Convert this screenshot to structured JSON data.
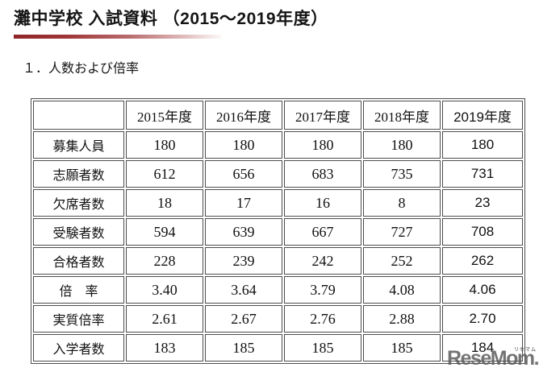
{
  "page": {
    "title": "灘中学校 入試資料 （2015～2019年度）",
    "section_heading": "１．人数および倍率"
  },
  "table": {
    "headers": [
      "",
      "2015年度",
      "2016年度",
      "2017年度",
      "2018年度",
      "2019年度"
    ],
    "rows": [
      {
        "label": "募集人員",
        "values": [
          "180",
          "180",
          "180",
          "180",
          "180"
        ]
      },
      {
        "label": "志願者数",
        "values": [
          "612",
          "656",
          "683",
          "735",
          "731"
        ]
      },
      {
        "label": "欠席者数",
        "values": [
          "18",
          "17",
          "16",
          "8",
          "23"
        ]
      },
      {
        "label": "受験者数",
        "values": [
          "594",
          "639",
          "667",
          "727",
          "708"
        ]
      },
      {
        "label": "合格者数",
        "values": [
          "228",
          "239",
          "242",
          "252",
          "262"
        ]
      },
      {
        "label": "倍　率",
        "values": [
          "3.40",
          "3.64",
          "3.79",
          "4.08",
          "4.06"
        ]
      },
      {
        "label": "実質倍率",
        "values": [
          "2.61",
          "2.67",
          "2.76",
          "2.88",
          "2.70"
        ]
      },
      {
        "label": "入学者数",
        "values": [
          "183",
          "185",
          "185",
          "185",
          "184"
        ]
      }
    ]
  },
  "watermark": {
    "logo_text": "ReseMom.",
    "ruby": "リセマム"
  },
  "colors": {
    "accent_gradient_start": "#8e2628",
    "accent_gradient_end": "#fdf9f9",
    "table_border": "#4d4d4d",
    "watermark_gray": "#5c5c5c"
  }
}
